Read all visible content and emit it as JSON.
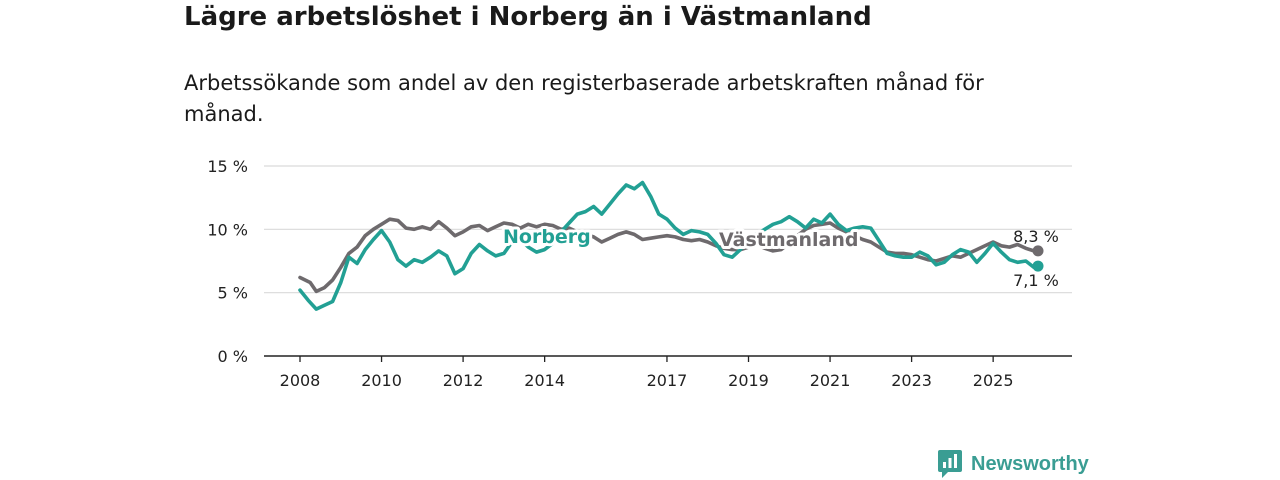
{
  "brand": {
    "name": "Newsworthy",
    "icon": "bar-chart-speech-icon",
    "color": "#3a9d93"
  },
  "chart_data": {
    "type": "line",
    "title": "Lägre arbetslöshet i Norberg än i Västmanland",
    "subtitle": "Arbetssökande som andel av den registerbaserade arbetskraften månad för månad.",
    "xlabel": "",
    "ylabel": "",
    "ylim": [
      0,
      15
    ],
    "xlim": [
      2008,
      2026.7
    ],
    "y_ticks": [
      {
        "value": 0,
        "label": "0 %"
      },
      {
        "value": 5,
        "label": "5 %"
      },
      {
        "value": 10,
        "label": "10 %"
      },
      {
        "value": 15,
        "label": "15 %"
      }
    ],
    "x_ticks": [
      {
        "value": 2008,
        "label": "2008"
      },
      {
        "value": 2010,
        "label": "2010"
      },
      {
        "value": 2012,
        "label": "2012"
      },
      {
        "value": 2014,
        "label": "2014"
      },
      {
        "value": 2017,
        "label": "2017"
      },
      {
        "value": 2019,
        "label": "2019"
      },
      {
        "value": 2021,
        "label": "2021"
      },
      {
        "value": 2023,
        "label": "2023"
      },
      {
        "value": 2025,
        "label": "2025"
      }
    ],
    "grid": true,
    "series": [
      {
        "name": "Västmanland",
        "color": "#6e6a6d",
        "end_label": "8,3 %",
        "points": [
          [
            2008.0,
            6.2
          ],
          [
            2008.25,
            5.8
          ],
          [
            2008.4,
            5.1
          ],
          [
            2008.6,
            5.4
          ],
          [
            2008.8,
            6.0
          ],
          [
            2009.0,
            7.0
          ],
          [
            2009.2,
            8.1
          ],
          [
            2009.4,
            8.6
          ],
          [
            2009.6,
            9.5
          ],
          [
            2009.8,
            10.0
          ],
          [
            2010.0,
            10.4
          ],
          [
            2010.2,
            10.8
          ],
          [
            2010.4,
            10.7
          ],
          [
            2010.6,
            10.1
          ],
          [
            2010.8,
            10.0
          ],
          [
            2011.0,
            10.2
          ],
          [
            2011.2,
            10.0
          ],
          [
            2011.4,
            10.6
          ],
          [
            2011.6,
            10.1
          ],
          [
            2011.8,
            9.5
          ],
          [
            2012.0,
            9.8
          ],
          [
            2012.2,
            10.2
          ],
          [
            2012.4,
            10.3
          ],
          [
            2012.6,
            9.9
          ],
          [
            2012.8,
            10.2
          ],
          [
            2013.0,
            10.5
          ],
          [
            2013.2,
            10.4
          ],
          [
            2013.4,
            10.1
          ],
          [
            2013.6,
            10.4
          ],
          [
            2013.8,
            10.2
          ],
          [
            2014.0,
            10.4
          ],
          [
            2014.2,
            10.3
          ],
          [
            2014.4,
            10.0
          ],
          [
            2014.6,
            10.1
          ],
          [
            2014.8,
            9.8
          ],
          [
            2015.0,
            9.6
          ],
          [
            2015.2,
            9.4
          ],
          [
            2015.4,
            9.0
          ],
          [
            2015.6,
            9.3
          ],
          [
            2015.8,
            9.6
          ],
          [
            2016.0,
            9.8
          ],
          [
            2016.2,
            9.6
          ],
          [
            2016.4,
            9.2
          ],
          [
            2016.6,
            9.3
          ],
          [
            2016.8,
            9.4
          ],
          [
            2017.0,
            9.5
          ],
          [
            2017.2,
            9.4
          ],
          [
            2017.4,
            9.2
          ],
          [
            2017.6,
            9.1
          ],
          [
            2017.8,
            9.2
          ],
          [
            2018.0,
            9.0
          ],
          [
            2018.2,
            8.7
          ],
          [
            2018.4,
            8.5
          ],
          [
            2018.6,
            8.4
          ],
          [
            2018.8,
            8.4
          ],
          [
            2019.0,
            8.6
          ],
          [
            2019.2,
            8.8
          ],
          [
            2019.4,
            8.5
          ],
          [
            2019.6,
            8.3
          ],
          [
            2019.8,
            8.4
          ],
          [
            2020.0,
            8.9
          ],
          [
            2020.2,
            9.5
          ],
          [
            2020.4,
            10.0
          ],
          [
            2020.6,
            10.3
          ],
          [
            2020.8,
            10.4
          ],
          [
            2021.0,
            10.5
          ],
          [
            2021.2,
            10.1
          ],
          [
            2021.4,
            9.8
          ],
          [
            2021.6,
            9.5
          ],
          [
            2021.8,
            9.2
          ],
          [
            2022.0,
            9.0
          ],
          [
            2022.2,
            8.6
          ],
          [
            2022.4,
            8.2
          ],
          [
            2022.6,
            8.1
          ],
          [
            2022.8,
            8.1
          ],
          [
            2023.0,
            8.0
          ],
          [
            2023.2,
            7.8
          ],
          [
            2023.4,
            7.6
          ],
          [
            2023.6,
            7.5
          ],
          [
            2023.8,
            7.7
          ],
          [
            2024.0,
            7.9
          ],
          [
            2024.2,
            7.8
          ],
          [
            2024.4,
            8.1
          ],
          [
            2024.6,
            8.4
          ],
          [
            2024.8,
            8.7
          ],
          [
            2025.0,
            9.0
          ],
          [
            2025.2,
            8.7
          ],
          [
            2025.4,
            8.6
          ],
          [
            2025.6,
            8.8
          ],
          [
            2025.8,
            8.5
          ],
          [
            2026.0,
            8.3
          ],
          [
            2026.1,
            8.3
          ]
        ]
      },
      {
        "name": "Norberg",
        "color": "#22a094",
        "end_label": "7,1 %",
        "points": [
          [
            2008.0,
            5.2
          ],
          [
            2008.2,
            4.4
          ],
          [
            2008.4,
            3.7
          ],
          [
            2008.6,
            4.0
          ],
          [
            2008.8,
            4.3
          ],
          [
            2009.0,
            5.8
          ],
          [
            2009.2,
            7.8
          ],
          [
            2009.4,
            7.3
          ],
          [
            2009.6,
            8.4
          ],
          [
            2009.8,
            9.2
          ],
          [
            2010.0,
            9.9
          ],
          [
            2010.2,
            9.0
          ],
          [
            2010.4,
            7.6
          ],
          [
            2010.6,
            7.1
          ],
          [
            2010.8,
            7.6
          ],
          [
            2011.0,
            7.4
          ],
          [
            2011.2,
            7.8
          ],
          [
            2011.4,
            8.3
          ],
          [
            2011.6,
            7.9
          ],
          [
            2011.8,
            6.5
          ],
          [
            2012.0,
            6.9
          ],
          [
            2012.2,
            8.1
          ],
          [
            2012.4,
            8.8
          ],
          [
            2012.6,
            8.3
          ],
          [
            2012.8,
            7.9
          ],
          [
            2013.0,
            8.1
          ],
          [
            2013.2,
            9.0
          ],
          [
            2013.4,
            9.2
          ],
          [
            2013.6,
            8.6
          ],
          [
            2013.8,
            8.2
          ],
          [
            2014.0,
            8.4
          ],
          [
            2014.2,
            8.9
          ],
          [
            2014.4,
            9.8
          ],
          [
            2014.6,
            10.5
          ],
          [
            2014.8,
            11.2
          ],
          [
            2015.0,
            11.4
          ],
          [
            2015.2,
            11.8
          ],
          [
            2015.4,
            11.2
          ],
          [
            2015.6,
            12.0
          ],
          [
            2015.8,
            12.8
          ],
          [
            2016.0,
            13.5
          ],
          [
            2016.2,
            13.2
          ],
          [
            2016.4,
            13.7
          ],
          [
            2016.6,
            12.6
          ],
          [
            2016.8,
            11.2
          ],
          [
            2017.0,
            10.8
          ],
          [
            2017.2,
            10.1
          ],
          [
            2017.4,
            9.6
          ],
          [
            2017.6,
            9.9
          ],
          [
            2017.8,
            9.8
          ],
          [
            2018.0,
            9.6
          ],
          [
            2018.2,
            8.9
          ],
          [
            2018.4,
            8.0
          ],
          [
            2018.6,
            7.8
          ],
          [
            2018.8,
            8.4
          ],
          [
            2019.0,
            9.5
          ],
          [
            2019.2,
            9.6
          ],
          [
            2019.4,
            10.0
          ],
          [
            2019.6,
            10.4
          ],
          [
            2019.8,
            10.6
          ],
          [
            2020.0,
            11.0
          ],
          [
            2020.2,
            10.6
          ],
          [
            2020.4,
            10.1
          ],
          [
            2020.6,
            10.8
          ],
          [
            2020.8,
            10.5
          ],
          [
            2021.0,
            11.2
          ],
          [
            2021.2,
            10.4
          ],
          [
            2021.4,
            9.9
          ],
          [
            2021.6,
            10.1
          ],
          [
            2021.8,
            10.2
          ],
          [
            2022.0,
            10.1
          ],
          [
            2022.2,
            9.1
          ],
          [
            2022.4,
            8.1
          ],
          [
            2022.6,
            7.9
          ],
          [
            2022.8,
            7.8
          ],
          [
            2023.0,
            7.8
          ],
          [
            2023.2,
            8.2
          ],
          [
            2023.4,
            7.9
          ],
          [
            2023.6,
            7.2
          ],
          [
            2023.8,
            7.4
          ],
          [
            2024.0,
            8.0
          ],
          [
            2024.2,
            8.4
          ],
          [
            2024.4,
            8.2
          ],
          [
            2024.6,
            7.4
          ],
          [
            2024.8,
            8.1
          ],
          [
            2025.0,
            8.9
          ],
          [
            2025.2,
            8.2
          ],
          [
            2025.4,
            7.6
          ],
          [
            2025.6,
            7.4
          ],
          [
            2025.8,
            7.5
          ],
          [
            2026.0,
            7.0
          ],
          [
            2026.1,
            7.1
          ]
        ]
      }
    ]
  }
}
